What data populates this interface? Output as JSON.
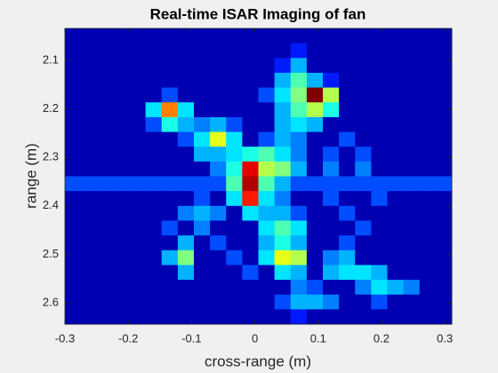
{
  "chart_data": {
    "type": "heatmap",
    "title": "Real-time ISAR Imaging of fan",
    "x_label": "cross-range (m)",
    "y_label": "range (m)",
    "colormap": "jet",
    "y_reversed": true,
    "xlim": [
      -0.3,
      0.311
    ],
    "ylim": [
      2.034,
      2.644
    ],
    "xticks": [
      -0.3,
      -0.2,
      -0.1,
      0,
      0.1,
      0.2,
      0.3
    ],
    "yticks": [
      2.1,
      2.2,
      2.3,
      2.4,
      2.5,
      2.6
    ],
    "values": [
      [
        0.05,
        0.05,
        0.05,
        0.05,
        0.05,
        0.05,
        0.05,
        0.05,
        0.05,
        0.05,
        0.05,
        0.05,
        0.05,
        0.05,
        0.05,
        0.05,
        0.05,
        0.05,
        0.05,
        0.05,
        0.05,
        0.05,
        0.05,
        0.05
      ],
      [
        0.05,
        0.05,
        0.05,
        0.05,
        0.05,
        0.05,
        0.05,
        0.05,
        0.05,
        0.05,
        0.05,
        0.05,
        0.05,
        0.05,
        0.15,
        0.05,
        0.05,
        0.05,
        0.05,
        0.05,
        0.05,
        0.05,
        0.05,
        0.05
      ],
      [
        0.05,
        0.05,
        0.05,
        0.05,
        0.05,
        0.05,
        0.05,
        0.05,
        0.05,
        0.05,
        0.05,
        0.05,
        0.05,
        0.15,
        0.3,
        0.05,
        0.05,
        0.05,
        0.05,
        0.05,
        0.05,
        0.05,
        0.05,
        0.05
      ],
      [
        0.05,
        0.05,
        0.05,
        0.05,
        0.05,
        0.05,
        0.05,
        0.05,
        0.05,
        0.05,
        0.05,
        0.05,
        0.05,
        0.3,
        0.45,
        0.3,
        0.15,
        0.05,
        0.05,
        0.05,
        0.05,
        0.05,
        0.05,
        0.05
      ],
      [
        0.05,
        0.05,
        0.05,
        0.05,
        0.05,
        0.05,
        0.2,
        0.05,
        0.05,
        0.05,
        0.05,
        0.05,
        0.2,
        0.35,
        0.5,
        1,
        0.55,
        0.05,
        0.05,
        0.05,
        0.05,
        0.05,
        0.05,
        0.05
      ],
      [
        0.05,
        0.05,
        0.05,
        0.05,
        0.05,
        0.35,
        0.75,
        0.35,
        0.05,
        0.05,
        0.05,
        0.05,
        0.05,
        0.3,
        0.45,
        0.55,
        0.4,
        0.05,
        0.05,
        0.05,
        0.05,
        0.05,
        0.05,
        0.05
      ],
      [
        0.05,
        0.05,
        0.05,
        0.05,
        0.05,
        0.2,
        0.4,
        0.3,
        0.25,
        0.3,
        0.2,
        0.05,
        0.05,
        0.3,
        0.35,
        0.3,
        0.05,
        0.05,
        0.05,
        0.05,
        0.05,
        0.05,
        0.05,
        0.05
      ],
      [
        0.05,
        0.05,
        0.05,
        0.05,
        0.05,
        0.05,
        0.05,
        0.2,
        0.35,
        0.6,
        0.35,
        0.05,
        0.2,
        0.3,
        0.25,
        0.05,
        0.05,
        0.2,
        0.05,
        0.05,
        0.05,
        0.05,
        0.05,
        0.05
      ],
      [
        0.05,
        0.05,
        0.05,
        0.05,
        0.05,
        0.05,
        0.05,
        0.05,
        0.3,
        0.3,
        0.35,
        0.4,
        0.45,
        0.35,
        0.25,
        0.05,
        0.2,
        0.05,
        0.2,
        0.05,
        0.05,
        0.05,
        0.05,
        0.05
      ],
      [
        0.05,
        0.05,
        0.05,
        0.05,
        0.05,
        0.05,
        0.05,
        0.05,
        0.05,
        0.25,
        0.4,
        0.9,
        0.55,
        0.5,
        0.3,
        0.05,
        0.25,
        0.05,
        0.25,
        0.05,
        0.05,
        0.05,
        0.05,
        0.05
      ],
      [
        0.2,
        0.2,
        0.2,
        0.2,
        0.2,
        0.2,
        0.2,
        0.2,
        0.2,
        0.2,
        0.45,
        0.95,
        0.45,
        0.3,
        0.2,
        0.2,
        0.2,
        0.2,
        0.2,
        0.2,
        0.2,
        0.2,
        0.2,
        0.2
      ],
      [
        0.05,
        0.05,
        0.05,
        0.05,
        0.05,
        0.05,
        0.05,
        0.05,
        0.2,
        0.05,
        0.35,
        0.85,
        0.35,
        0.25,
        0.05,
        0.05,
        0.2,
        0.05,
        0.05,
        0.2,
        0.05,
        0.05,
        0.05,
        0.05
      ],
      [
        0.05,
        0.05,
        0.05,
        0.05,
        0.05,
        0.05,
        0.05,
        0.25,
        0.3,
        0.25,
        0.05,
        0.35,
        0.3,
        0.3,
        0.2,
        0.05,
        0.05,
        0.2,
        0.05,
        0.05,
        0.05,
        0.05,
        0.05,
        0.05
      ],
      [
        0.05,
        0.05,
        0.05,
        0.05,
        0.05,
        0.05,
        0.2,
        0.05,
        0.25,
        0.05,
        0.05,
        0.05,
        0.35,
        0.45,
        0.35,
        0.05,
        0.05,
        0.05,
        0.2,
        0.05,
        0.05,
        0.05,
        0.05,
        0.05
      ],
      [
        0.05,
        0.05,
        0.05,
        0.05,
        0.05,
        0.05,
        0.05,
        0.3,
        0.05,
        0.2,
        0.05,
        0.05,
        0.3,
        0.4,
        0.3,
        0.05,
        0.05,
        0.2,
        0.05,
        0.05,
        0.05,
        0.05,
        0.05,
        0.05
      ],
      [
        0.05,
        0.05,
        0.05,
        0.05,
        0.05,
        0.05,
        0.3,
        0.5,
        0.05,
        0.05,
        0.2,
        0.05,
        0.35,
        0.6,
        0.55,
        0.05,
        0.25,
        0.3,
        0.05,
        0.05,
        0.05,
        0.05,
        0.05,
        0.05
      ],
      [
        0.05,
        0.05,
        0.05,
        0.05,
        0.05,
        0.05,
        0.05,
        0.3,
        0.05,
        0.05,
        0.05,
        0.2,
        0.05,
        0.35,
        0.3,
        0.05,
        0.3,
        0.35,
        0.35,
        0.3,
        0.05,
        0.05,
        0.05,
        0.05
      ],
      [
        0.05,
        0.05,
        0.05,
        0.05,
        0.05,
        0.05,
        0.05,
        0.05,
        0.05,
        0.05,
        0.05,
        0.05,
        0.05,
        0.05,
        0.25,
        0.2,
        0.05,
        0.05,
        0.25,
        0.35,
        0.3,
        0.25,
        0.05,
        0.05
      ],
      [
        0.05,
        0.05,
        0.05,
        0.05,
        0.05,
        0.05,
        0.05,
        0.05,
        0.05,
        0.05,
        0.05,
        0.05,
        0.05,
        0.2,
        0.3,
        0.3,
        0.25,
        0.05,
        0.05,
        0.2,
        0.05,
        0.05,
        0.05,
        0.05
      ],
      [
        0.05,
        0.05,
        0.05,
        0.05,
        0.05,
        0.05,
        0.05,
        0.05,
        0.05,
        0.05,
        0.05,
        0.05,
        0.05,
        0.05,
        0.15,
        0.05,
        0.05,
        0.05,
        0.05,
        0.05,
        0.05,
        0.05,
        0.05,
        0.05
      ]
    ]
  }
}
